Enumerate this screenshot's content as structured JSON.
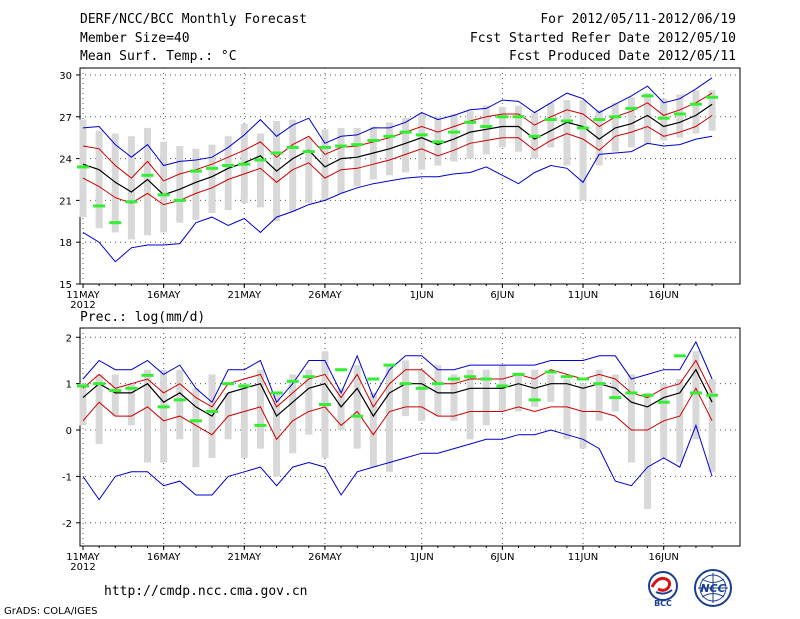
{
  "header": {
    "title": "DERF/NCC/BCC Monthly Forecast",
    "member_size": "Member Size=40",
    "variable": "Mean Surf. Temp.: °C",
    "period": "For 2012/05/11-2012/06/19",
    "fcst_started": "Fcst Started Refer Date 2012/05/10",
    "fcst_produced": "Fcst Produced Date 2012/05/11"
  },
  "footer": {
    "url": "http://cmdp.ncc.cma.gov.cn",
    "grads_credit": "GrADS: COLA/IGES",
    "logo_bcc": "BCC",
    "logo_ncc": "NCC"
  },
  "colors": {
    "envelope": "#0000cc",
    "spread": "#cc0000",
    "mean": "#000000",
    "box": "#d8d8d8",
    "median_marker": "#33ee33",
    "grid": "#555555"
  },
  "chart_data": [
    {
      "type": "line",
      "panel": "temperature",
      "title": "",
      "ylabel": "Mean Surf. Temp.: °C",
      "ylim": [
        15,
        30.5
      ],
      "yticks": [
        15,
        18,
        21,
        24,
        27,
        30
      ],
      "ytick_labels": [
        "15",
        "18",
        "21",
        "24",
        "27",
        "30"
      ],
      "xticks": [
        {
          "day": 1,
          "label": "11MAY",
          "sublabel": "2012"
        },
        {
          "day": 6,
          "label": "16MAY"
        },
        {
          "day": 11,
          "label": "21MAY"
        },
        {
          "day": 16,
          "label": "26MAY"
        },
        {
          "day": 22,
          "label": "1JUN"
        },
        {
          "day": 27,
          "label": "6JUN"
        },
        {
          "day": 32,
          "label": "11JUN"
        },
        {
          "day": 37,
          "label": "16JUN"
        }
      ],
      "x": [
        1,
        2,
        3,
        4,
        5,
        6,
        7,
        8,
        9,
        10,
        11,
        12,
        13,
        14,
        15,
        16,
        17,
        18,
        19,
        20,
        21,
        22,
        23,
        24,
        25,
        26,
        27,
        28,
        29,
        30,
        31,
        32,
        33,
        34,
        35,
        36,
        37,
        38,
        39,
        40
      ],
      "series": [
        {
          "name": "max",
          "values": [
            26.2,
            26.3,
            25.0,
            24.1,
            25.0,
            23.5,
            23.8,
            23.9,
            24.1,
            24.8,
            25.7,
            26.8,
            25.6,
            26.4,
            26.9,
            25.1,
            25.6,
            25.7,
            26.2,
            26.2,
            26.6,
            27.3,
            26.8,
            27.1,
            27.5,
            27.6,
            28.2,
            28.1,
            27.3,
            28.0,
            28.7,
            28.3,
            27.3,
            27.9,
            28.5,
            29.2,
            28.0,
            28.3,
            29.0,
            29.8
          ]
        },
        {
          "name": "upper",
          "values": [
            24.9,
            24.7,
            23.5,
            22.6,
            23.8,
            22.4,
            22.9,
            23.2,
            23.6,
            24.1,
            24.6,
            25.2,
            24.1,
            25.0,
            25.6,
            24.3,
            24.8,
            24.9,
            25.2,
            25.5,
            25.9,
            26.3,
            25.9,
            26.3,
            26.7,
            27.0,
            27.2,
            27.2,
            26.4,
            27.0,
            27.5,
            27.2,
            26.3,
            27.0,
            27.4,
            28.0,
            27.1,
            27.5,
            28.0,
            28.7
          ]
        },
        {
          "name": "mean",
          "values": [
            23.6,
            23.2,
            22.3,
            21.6,
            22.5,
            21.4,
            21.8,
            22.3,
            22.7,
            23.3,
            23.7,
            24.2,
            23.1,
            24.0,
            24.6,
            23.4,
            24.0,
            24.1,
            24.4,
            24.7,
            25.1,
            25.5,
            25.0,
            25.4,
            25.9,
            26.1,
            26.3,
            26.3,
            25.4,
            26.0,
            26.6,
            26.3,
            25.4,
            26.2,
            26.5,
            27.1,
            26.3,
            26.6,
            27.1,
            27.9
          ]
        },
        {
          "name": "lower",
          "values": [
            22.6,
            22.0,
            21.2,
            20.8,
            21.5,
            20.7,
            21.0,
            21.5,
            21.9,
            22.5,
            22.9,
            23.3,
            22.3,
            23.2,
            23.7,
            22.6,
            23.2,
            23.3,
            23.6,
            23.9,
            24.3,
            24.7,
            24.2,
            24.6,
            25.1,
            25.3,
            25.5,
            25.5,
            24.6,
            25.3,
            25.8,
            25.4,
            24.6,
            25.6,
            25.9,
            26.3,
            25.6,
            25.9,
            26.3,
            27.1
          ]
        },
        {
          "name": "min",
          "values": [
            18.7,
            18.0,
            16.6,
            17.6,
            17.8,
            17.8,
            17.9,
            19.4,
            19.8,
            19.2,
            19.7,
            18.7,
            19.8,
            20.2,
            20.7,
            21.0,
            21.5,
            21.9,
            22.2,
            22.4,
            22.6,
            22.7,
            22.7,
            22.9,
            23.0,
            23.4,
            22.8,
            22.2,
            23.0,
            23.5,
            23.3,
            22.3,
            24.3,
            24.4,
            24.5,
            25.1,
            24.9,
            25.0,
            25.4,
            25.6
          ]
        },
        {
          "name": "box_low",
          "values": [
            19.8,
            19.0,
            18.7,
            18.2,
            18.5,
            18.7,
            19.4,
            19.6,
            20.1,
            20.3,
            20.8,
            20.5,
            19.5,
            20.2,
            20.8,
            21.0,
            21.5,
            22.0,
            22.5,
            22.8,
            23.0,
            23.2,
            23.5,
            23.8,
            24.0,
            24.3,
            24.8,
            24.5,
            24.0,
            24.8,
            23.5,
            21.0,
            23.5,
            24.5,
            24.8,
            25.0,
            25.3,
            25.5,
            25.8,
            26.0
          ]
        },
        {
          "name": "box_high",
          "values": [
            26.8,
            26.0,
            25.8,
            25.6,
            26.2,
            25.2,
            24.9,
            24.7,
            25.0,
            25.6,
            26.5,
            25.8,
            26.7,
            26.8,
            25.5,
            26.1,
            26.2,
            26.2,
            26.3,
            26.6,
            26.9,
            27.2,
            27.0,
            27.2,
            27.4,
            27.8,
            27.7,
            27.8,
            27.3,
            28.0,
            28.2,
            28.2,
            27.5,
            28.0,
            28.4,
            28.7,
            28.3,
            28.6,
            28.9,
            28.9
          ]
        },
        {
          "name": "median",
          "values": [
            23.4,
            20.6,
            19.4,
            20.9,
            22.8,
            21.4,
            21.0,
            23.1,
            23.3,
            23.5,
            23.6,
            23.9,
            24.4,
            24.8,
            24.5,
            24.8,
            24.9,
            25.0,
            25.3,
            25.6,
            25.9,
            25.7,
            25.2,
            25.9,
            26.6,
            26.3,
            27.0,
            27.0,
            25.6,
            26.8,
            26.7,
            26.2,
            26.8,
            27.0,
            27.6,
            28.5,
            26.9,
            27.2,
            27.9,
            28.4
          ]
        }
      ]
    },
    {
      "type": "line",
      "panel": "precipitation",
      "title": "Prec.: log(mm/d)",
      "ylabel": "Prec.: log(mm/d)",
      "ylim": [
        -2.5,
        2.2
      ],
      "yticks": [
        -2,
        -1,
        0,
        1,
        2
      ],
      "ytick_labels": [
        "-2",
        "-1",
        "0",
        "1",
        "2"
      ],
      "xticks": [
        {
          "day": 1,
          "label": "11MAY",
          "sublabel": "2012"
        },
        {
          "day": 6,
          "label": "16MAY"
        },
        {
          "day": 11,
          "label": "21MAY"
        },
        {
          "day": 16,
          "label": "26MAY"
        },
        {
          "day": 22,
          "label": "1JUN"
        },
        {
          "day": 27,
          "label": "6JUN"
        },
        {
          "day": 32,
          "label": "11JUN"
        },
        {
          "day": 37,
          "label": "16JUN"
        }
      ],
      "x": [
        1,
        2,
        3,
        4,
        5,
        6,
        7,
        8,
        9,
        10,
        11,
        12,
        13,
        14,
        15,
        16,
        17,
        18,
        19,
        20,
        21,
        22,
        23,
        24,
        25,
        26,
        27,
        28,
        29,
        30,
        31,
        32,
        33,
        34,
        35,
        36,
        37,
        38,
        39,
        40
      ],
      "series": [
        {
          "name": "max",
          "values": [
            1.1,
            1.5,
            1.3,
            1.3,
            1.5,
            1.2,
            1.4,
            0.9,
            0.6,
            1.3,
            1.3,
            1.5,
            0.6,
            1.0,
            1.5,
            1.5,
            0.8,
            1.6,
            0.7,
            1.3,
            1.6,
            1.6,
            1.3,
            1.3,
            1.4,
            1.4,
            1.4,
            1.4,
            1.4,
            1.5,
            1.5,
            1.5,
            1.6,
            1.6,
            1.1,
            1.2,
            1.3,
            1.3,
            1.9,
            1.1
          ]
        },
        {
          "name": "upper",
          "values": [
            0.9,
            1.2,
            0.9,
            1.0,
            1.1,
            0.8,
            1.0,
            0.7,
            0.5,
            1.0,
            1.1,
            1.2,
            0.5,
            0.8,
            1.1,
            1.2,
            0.7,
            1.2,
            0.5,
            1.0,
            1.3,
            1.3,
            1.0,
            1.0,
            1.1,
            1.1,
            1.1,
            1.2,
            1.1,
            1.3,
            1.2,
            1.1,
            1.2,
            1.1,
            0.8,
            0.7,
            0.9,
            1.0,
            1.5,
            0.8
          ]
        },
        {
          "name": "mean",
          "values": [
            0.7,
            1.0,
            0.8,
            0.8,
            1.0,
            0.6,
            0.8,
            0.5,
            0.3,
            0.8,
            0.9,
            1.0,
            0.3,
            0.6,
            0.9,
            1.0,
            0.5,
            0.9,
            0.3,
            0.8,
            1.0,
            1.0,
            0.8,
            0.8,
            0.9,
            0.9,
            0.9,
            1.0,
            0.9,
            1.0,
            1.0,
            0.9,
            1.0,
            0.9,
            0.6,
            0.5,
            0.7,
            0.8,
            1.3,
            0.6
          ]
        },
        {
          "name": "lower",
          "values": [
            0.2,
            0.6,
            0.3,
            0.3,
            0.5,
            0.2,
            0.3,
            0.1,
            -0.1,
            0.3,
            0.4,
            0.5,
            -0.2,
            0.2,
            0.4,
            0.5,
            0.1,
            0.4,
            -0.1,
            0.4,
            0.5,
            0.5,
            0.3,
            0.3,
            0.4,
            0.4,
            0.4,
            0.5,
            0.4,
            0.5,
            0.5,
            0.4,
            0.4,
            0.3,
            0.0,
            0.0,
            0.2,
            0.3,
            0.9,
            0.2
          ]
        },
        {
          "name": "min",
          "values": [
            -1.0,
            -1.5,
            -1.0,
            -0.9,
            -0.9,
            -1.2,
            -1.1,
            -1.4,
            -1.4,
            -1.0,
            -0.9,
            -0.8,
            -1.2,
            -0.8,
            -0.7,
            -0.8,
            -1.4,
            -0.9,
            -0.8,
            -0.7,
            -0.6,
            -0.5,
            -0.5,
            -0.4,
            -0.3,
            -0.2,
            -0.2,
            -0.1,
            -0.1,
            0.0,
            -0.1,
            -0.2,
            -0.4,
            -1.1,
            -1.2,
            -0.8,
            -0.6,
            -0.8,
            0.1,
            -1.0
          ]
        },
        {
          "name": "box_low",
          "values": [
            0.1,
            -0.3,
            0.3,
            0.1,
            -0.7,
            -0.7,
            -0.2,
            -0.8,
            -0.6,
            -0.2,
            -0.6,
            -0.4,
            -1.0,
            -0.5,
            -0.1,
            -0.6,
            0.0,
            -0.4,
            -0.8,
            -0.9,
            0.3,
            0.2,
            0.3,
            0.2,
            -0.2,
            0.1,
            0.4,
            0.4,
            0.5,
            0.6,
            -0.2,
            -0.4,
            0.2,
            0.4,
            -0.7,
            -1.7,
            -0.6,
            -0.7,
            -0.2,
            -0.9
          ]
        },
        {
          "name": "box_high",
          "values": [
            1.0,
            1.2,
            1.2,
            1.0,
            1.3,
            1.3,
            1.3,
            0.9,
            1.2,
            0.8,
            1.0,
            1.3,
            0.8,
            1.2,
            1.3,
            1.7,
            0.9,
            1.4,
            0.8,
            1.4,
            1.5,
            1.3,
            1.4,
            1.2,
            1.3,
            1.3,
            1.4,
            1.2,
            1.3,
            1.2,
            1.1,
            1.0,
            1.3,
            1.2,
            1.2,
            0.8,
            1.0,
            1.1,
            1.7,
            1.1
          ]
        },
        {
          "name": "median",
          "values": [
            0.95,
            1.0,
            0.85,
            0.9,
            1.18,
            0.5,
            0.65,
            0.2,
            0.4,
            1.0,
            0.95,
            0.1,
            0.8,
            1.05,
            1.15,
            0.55,
            1.3,
            0.3,
            1.1,
            1.4,
            1.0,
            0.9,
            1.0,
            1.1,
            1.15,
            1.1,
            0.95,
            1.2,
            0.65,
            1.25,
            1.15,
            1.1,
            1.0,
            0.7,
            0.8,
            0.75,
            0.6,
            1.6,
            0.8,
            0.75
          ]
        }
      ]
    }
  ]
}
